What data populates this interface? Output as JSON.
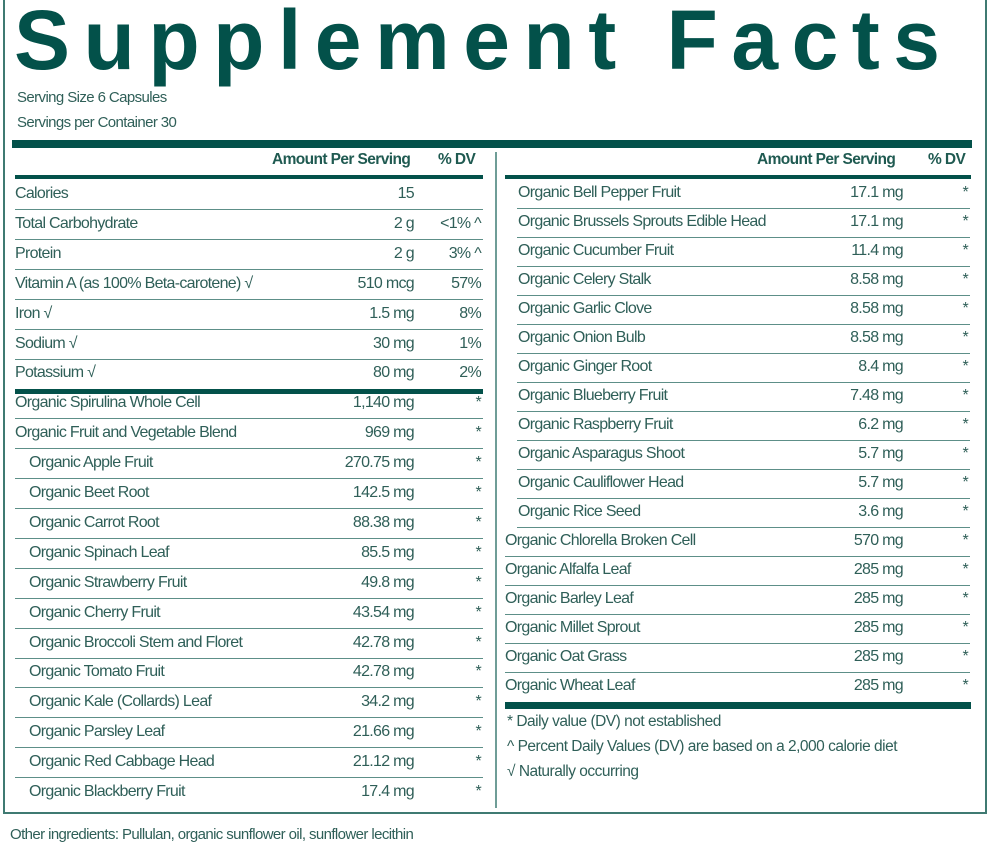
{
  "title": "Supplement Facts",
  "serving_size": "Serving Size 6 Capsules",
  "servings_per_container": "Servings per Container 30",
  "headers": {
    "amount": "Amount Per Serving",
    "dv": "% DV"
  },
  "left_rows": [
    {
      "name": "Calories",
      "amount": "15",
      "dv": "",
      "indent": false
    },
    {
      "name": "Total Carbohydrate",
      "amount": "2 g",
      "dv": "<1% ^",
      "indent": false
    },
    {
      "name": "Protein",
      "amount": "2 g",
      "dv": "3% ^",
      "indent": false
    },
    {
      "name": "Vitamin A (as 100% Beta-carotene) √",
      "amount": "510 mcg",
      "dv": "57%",
      "indent": false
    },
    {
      "name": "Iron √",
      "amount": "1.5 mg",
      "dv": "8%",
      "indent": false
    },
    {
      "name": "Sodium √",
      "amount": "30 mg",
      "dv": "1%",
      "indent": false
    },
    {
      "name": "Potassium √",
      "amount": "80 mg",
      "dv": "2%",
      "indent": false
    },
    {
      "name": "Organic Spirulina Whole Cell",
      "amount": "1,140 mg",
      "dv": "*",
      "indent": false
    },
    {
      "name": "Organic Fruit and Vegetable Blend",
      "amount": "969 mg",
      "dv": "*",
      "indent": false
    },
    {
      "name": "Organic Apple Fruit",
      "amount": "270.75 mg",
      "dv": "*",
      "indent": true
    },
    {
      "name": "Organic Beet Root",
      "amount": "142.5 mg",
      "dv": "*",
      "indent": true
    },
    {
      "name": "Organic Carrot Root",
      "amount": "88.38 mg",
      "dv": "*",
      "indent": true
    },
    {
      "name": "Organic Spinach Leaf",
      "amount": "85.5 mg",
      "dv": "*",
      "indent": true
    },
    {
      "name": "Organic Strawberry Fruit",
      "amount": "49.8 mg",
      "dv": "*",
      "indent": true
    },
    {
      "name": "Organic Cherry Fruit",
      "amount": "43.54 mg",
      "dv": "*",
      "indent": true
    },
    {
      "name": "Organic Broccoli Stem and Floret",
      "amount": "42.78 mg",
      "dv": "*",
      "indent": true
    },
    {
      "name": "Organic Tomato Fruit",
      "amount": "42.78 mg",
      "dv": "*",
      "indent": true
    },
    {
      "name": "Organic Kale (Collards) Leaf",
      "amount": "34.2 mg",
      "dv": "*",
      "indent": true
    },
    {
      "name": "Organic Parsley Leaf",
      "amount": "21.66 mg",
      "dv": "*",
      "indent": true
    },
    {
      "name": "Organic Red Cabbage Head",
      "amount": "21.12 mg",
      "dv": "*",
      "indent": true
    },
    {
      "name": "Organic Blackberry Fruit",
      "amount": "17.4 mg",
      "dv": "*",
      "indent": true
    }
  ],
  "right_rows": [
    {
      "name": "Organic Bell Pepper Fruit",
      "amount": "17.1 mg",
      "dv": "*",
      "indent": true
    },
    {
      "name": "Organic Brussels Sprouts Edible Head",
      "amount": "17.1 mg",
      "dv": "*",
      "indent": true
    },
    {
      "name": "Organic Cucumber Fruit",
      "amount": "11.4 mg",
      "dv": "*",
      "indent": true
    },
    {
      "name": "Organic Celery Stalk",
      "amount": "8.58 mg",
      "dv": "*",
      "indent": true
    },
    {
      "name": "Organic Garlic Clove",
      "amount": "8.58 mg",
      "dv": "*",
      "indent": true
    },
    {
      "name": "Organic Onion Bulb",
      "amount": "8.58 mg",
      "dv": "*",
      "indent": true
    },
    {
      "name": "Organic Ginger Root",
      "amount": "8.4 mg",
      "dv": "*",
      "indent": true
    },
    {
      "name": "Organic Blueberry Fruit",
      "amount": "7.48 mg",
      "dv": "*",
      "indent": true
    },
    {
      "name": "Organic Raspberry Fruit",
      "amount": "6.2 mg",
      "dv": "*",
      "indent": true
    },
    {
      "name": "Organic Asparagus Shoot",
      "amount": "5.7 mg",
      "dv": "*",
      "indent": true
    },
    {
      "name": "Organic Cauliflower Head",
      "amount": "5.7 mg",
      "dv": "*",
      "indent": true
    },
    {
      "name": "Organic Rice Seed",
      "amount": "3.6 mg",
      "dv": "*",
      "indent": true
    },
    {
      "name": "Organic Chlorella Broken Cell",
      "amount": "570 mg",
      "dv": "*",
      "indent": false
    },
    {
      "name": "Organic Alfalfa Leaf",
      "amount": "285 mg",
      "dv": "*",
      "indent": false
    },
    {
      "name": "Organic Barley Leaf",
      "amount": "285 mg",
      "dv": "*",
      "indent": false
    },
    {
      "name": "Organic Millet Sprout",
      "amount": "285 mg",
      "dv": "*",
      "indent": false
    },
    {
      "name": "Organic Oat Grass",
      "amount": "285 mg",
      "dv": "*",
      "indent": false
    },
    {
      "name": "Organic Wheat Leaf",
      "amount": "285 mg",
      "dv": "*",
      "indent": false
    }
  ],
  "footnotes": [
    "* Daily value (DV) not established",
    "^ Percent Daily Values (DV) are based on a 2,000 calorie diet",
    "√ Naturally occurring"
  ],
  "other_ingredients": "Other ingredients: Pullulan, organic sunflower oil, sunflower lecithin",
  "colors": {
    "brand": "#03514a",
    "text": "#2f5f58",
    "rule": "#5d8f88"
  }
}
